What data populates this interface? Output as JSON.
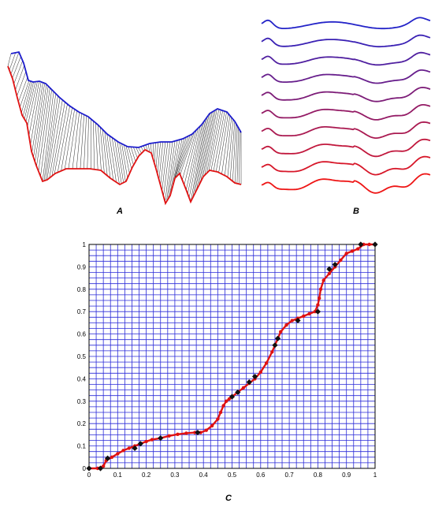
{
  "panel_labels": {
    "a": "A",
    "b": "B",
    "c": "C"
  },
  "colors": {
    "blue": "#1c1ccc",
    "red": "#e01212",
    "grid": "#2a2ad8",
    "marker": "#111111",
    "wave_top": "#2323c8",
    "wave_bottom": "#ee1515"
  },
  "chart_data": {
    "type": "line",
    "xlim": [
      0,
      1
    ],
    "ylim": [
      0,
      1
    ],
    "grid": true,
    "x_ticks": [
      "0",
      "0.1",
      "0.2",
      "0.3",
      "0.4",
      "0.5",
      "0.6",
      "0.7",
      "0.8",
      "0.9",
      "1"
    ],
    "y_ticks": [
      "0",
      "0.1",
      "0.2",
      "0.3",
      "0.4",
      "0.5",
      "0.6",
      "0.7",
      "0.8",
      "0.9",
      "1"
    ],
    "series": [
      {
        "style": "red-line",
        "x": [
          0,
          0.03,
          0.05,
          0.06,
          0.08,
          0.1,
          0.12,
          0.14,
          0.16,
          0.18,
          0.2,
          0.22,
          0.25,
          0.28,
          0.31,
          0.34,
          0.37,
          0.39,
          0.41,
          0.43,
          0.45,
          0.46,
          0.47,
          0.48,
          0.49,
          0.5,
          0.52,
          0.54,
          0.56,
          0.58,
          0.6,
          0.62,
          0.64,
          0.65,
          0.66,
          0.67,
          0.69,
          0.71,
          0.73,
          0.75,
          0.77,
          0.79,
          0.8,
          0.805,
          0.81,
          0.82,
          0.84,
          0.86,
          0.88,
          0.9,
          0.92,
          0.94,
          0.96,
          0.98,
          1
        ],
        "y": [
          0,
          0,
          0.01,
          0.035,
          0.05,
          0.065,
          0.08,
          0.09,
          0.1,
          0.11,
          0.12,
          0.128,
          0.135,
          0.145,
          0.152,
          0.157,
          0.16,
          0.16,
          0.17,
          0.19,
          0.22,
          0.25,
          0.28,
          0.3,
          0.31,
          0.32,
          0.34,
          0.36,
          0.38,
          0.4,
          0.43,
          0.47,
          0.52,
          0.55,
          0.58,
          0.61,
          0.64,
          0.66,
          0.67,
          0.68,
          0.69,
          0.7,
          0.73,
          0.76,
          0.8,
          0.84,
          0.87,
          0.9,
          0.93,
          0.96,
          0.97,
          0.98,
          1,
          1,
          1
        ]
      },
      {
        "style": "black-diamonds",
        "x": [
          0,
          0.04,
          0.065,
          0.16,
          0.18,
          0.25,
          0.38,
          0.5,
          0.52,
          0.56,
          0.58,
          0.65,
          0.66,
          0.73,
          0.8,
          0.84,
          0.86,
          0.95,
          1
        ],
        "y": [
          0,
          0,
          0.045,
          0.09,
          0.11,
          0.135,
          0.16,
          0.32,
          0.34,
          0.385,
          0.41,
          0.55,
          0.58,
          0.66,
          0.7,
          0.89,
          0.91,
          1,
          1
        ]
      }
    ]
  }
}
